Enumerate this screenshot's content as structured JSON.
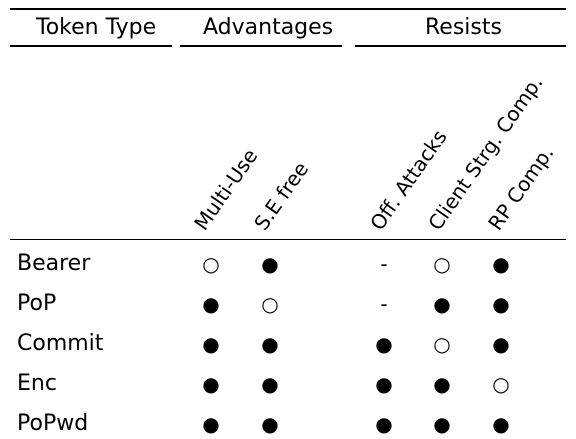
{
  "table": {
    "header": {
      "token_type": "Token Type",
      "advantages": "Advantages",
      "resists": "Resists"
    },
    "subheaders": [
      "Multi-Use",
      "S.E free",
      "Off. Attacks",
      "Client Strg. Comp.",
      "RP Comp."
    ],
    "rows": [
      {
        "label": "Bearer",
        "cells": [
          "○",
          "●",
          "-",
          "○",
          "●"
        ]
      },
      {
        "label": "PoP",
        "cells": [
          "●",
          "○",
          "-",
          "●",
          "●"
        ]
      },
      {
        "label": "Commit",
        "cells": [
          "●",
          "●",
          "●",
          "○",
          "●"
        ]
      },
      {
        "label": "Enc",
        "cells": [
          "●",
          "●",
          "●",
          "●",
          "○"
        ]
      },
      {
        "label": "PoPwd",
        "cells": [
          "●",
          "●",
          "●",
          "●",
          "●"
        ]
      }
    ]
  }
}
